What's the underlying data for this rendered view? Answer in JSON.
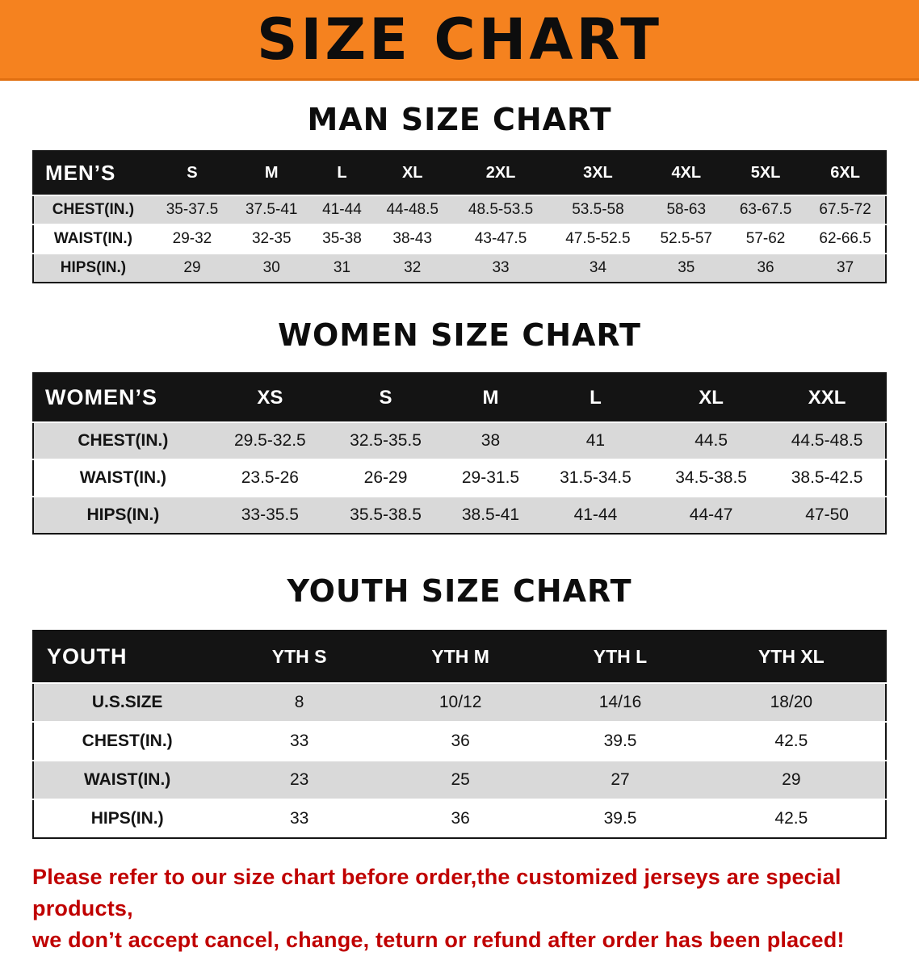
{
  "banner": {
    "title": "SIZE CHART",
    "background_color": "#f5821f",
    "text_color": "#0d0d0d"
  },
  "colors": {
    "table_header_bg": "#141414",
    "table_header_text": "#ffffff",
    "row_stripe": "#d9d9d9",
    "disclaimer_text": "#c00000"
  },
  "chart_data": [
    {
      "type": "table",
      "title": "MAN SIZE CHART",
      "columns": [
        "MEN’S",
        "S",
        "M",
        "L",
        "XL",
        "2XL",
        "3XL",
        "4XL",
        "5XL",
        "6XL"
      ],
      "rows": [
        [
          "CHEST(IN.)",
          "35-37.5",
          "37.5-41",
          "41-44",
          "44-48.5",
          "48.5-53.5",
          "53.5-58",
          "58-63",
          "63-67.5",
          "67.5-72"
        ],
        [
          "WAIST(IN.)",
          "29-32",
          "32-35",
          "35-38",
          "38-43",
          "43-47.5",
          "47.5-52.5",
          "52.5-57",
          "57-62",
          "62-66.5"
        ],
        [
          "HIPS(IN.)",
          "29",
          "30",
          "31",
          "32",
          "33",
          "34",
          "35",
          "36",
          "37"
        ]
      ]
    },
    {
      "type": "table",
      "title": "WOMEN SIZE CHART",
      "columns": [
        "WOMEN’S",
        "XS",
        "S",
        "M",
        "L",
        "XL",
        "XXL"
      ],
      "rows": [
        [
          "CHEST(IN.)",
          "29.5-32.5",
          "32.5-35.5",
          "38",
          "41",
          "44.5",
          "44.5-48.5"
        ],
        [
          "WAIST(IN.)",
          "23.5-26",
          "26-29",
          "29-31.5",
          "31.5-34.5",
          "34.5-38.5",
          "38.5-42.5"
        ],
        [
          "HIPS(IN.)",
          "33-35.5",
          "35.5-38.5",
          "38.5-41",
          "41-44",
          "44-47",
          "47-50"
        ]
      ]
    },
    {
      "type": "table",
      "title": "YOUTH SIZE CHART",
      "columns": [
        "YOUTH",
        "YTH S",
        "YTH M",
        "YTH L",
        "YTH XL"
      ],
      "rows": [
        [
          "U.S.SIZE",
          "8",
          "10/12",
          "14/16",
          "18/20"
        ],
        [
          "CHEST(IN.)",
          "33",
          "36",
          "39.5",
          "42.5"
        ],
        [
          "WAIST(IN.)",
          "23",
          "25",
          "27",
          "29"
        ],
        [
          "HIPS(IN.)",
          "33",
          "36",
          "39.5",
          "42.5"
        ]
      ]
    }
  ],
  "disclaimer": {
    "line1": "Please refer to our size chart before order,the customized jerseys are special products,",
    "line2": "we don’t accept cancel, change, teturn or refund after order has been placed!"
  }
}
